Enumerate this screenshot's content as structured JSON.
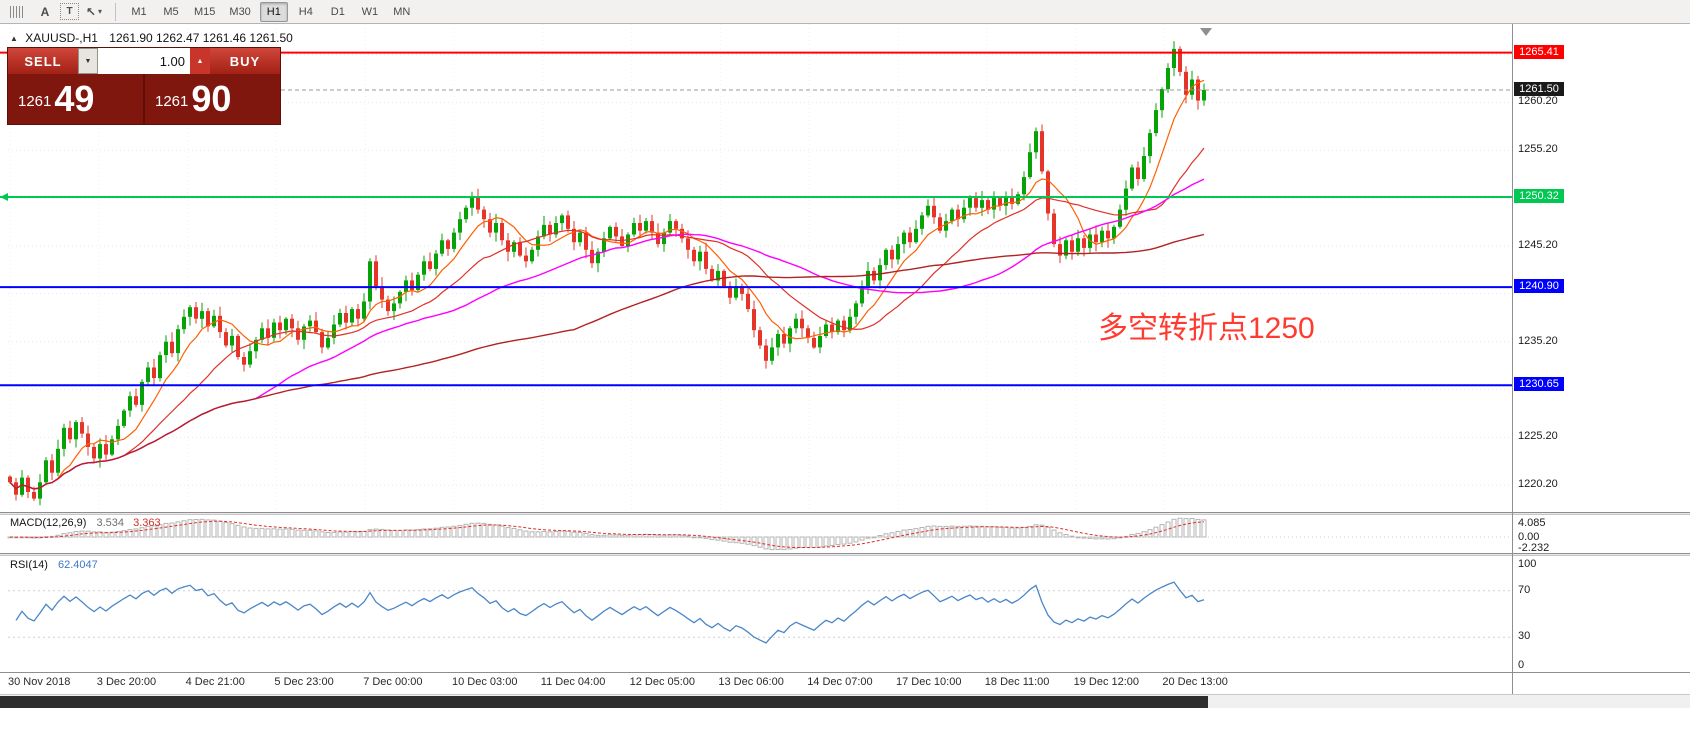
{
  "toolbar": {
    "letter_a": "A",
    "letter_t": "T",
    "timeframes": [
      "M1",
      "M5",
      "M15",
      "M30",
      "H1",
      "H4",
      "D1",
      "W1",
      "MN"
    ],
    "active_timeframe": "H1"
  },
  "header": {
    "symbol": "XAUUSD-,H1",
    "ohlc": "1261.90 1262.47 1261.46 1261.50"
  },
  "one_click": {
    "sell": "SELL",
    "buy": "BUY",
    "volume": "1.00",
    "sell_big": "1261",
    "sell_sup": "49",
    "buy_big": "1261",
    "buy_sup": "90"
  },
  "annotation": {
    "text": "多空转折点1250",
    "color": "#ff3b30"
  },
  "colors": {
    "up": "#07a207",
    "down": "#e53528",
    "ma_fast": "#ff5f00",
    "ma_med": "#e03028",
    "ma_mag": "#ff00ff",
    "ma_slow": "#b22222",
    "sup_line": "#00c853",
    "current": "#1a1a1a",
    "macd_signal": "#e03028",
    "macd_hist": "#b4b4b4",
    "rsi": "#4a86c8"
  },
  "levels": [
    {
      "price": 1265.41,
      "label": "1265.41",
      "color": "#ff0000"
    },
    {
      "price": 1250.32,
      "label": "1250.32",
      "color": "#00c853"
    },
    {
      "price": 1240.9,
      "label": "1240.90",
      "color": "#0000ff"
    },
    {
      "price": 1230.65,
      "label": "1230.65",
      "color": "#0000ff"
    }
  ],
  "current_price": {
    "price": 1261.5,
    "label": "1261.50"
  },
  "macd": {
    "name": "MACD(12,26,9)",
    "value_main": "3.534",
    "value_signal": "3.363",
    "axis": [
      "4.085",
      "0.00",
      "-2.232"
    ]
  },
  "rsi": {
    "name": "RSI(14)",
    "value": "62.4047",
    "axis": [
      "100",
      "70",
      "30",
      "0"
    ],
    "levels": [
      70,
      30
    ]
  },
  "chart_data": {
    "type": "candlestick",
    "symbol": "XAUUSD-",
    "timeframe": "H1",
    "title": "XAUUSD-,H1 1261.90 1262.47 1261.46 1261.50",
    "ohlc_header": {
      "open": 1261.9,
      "high": 1262.47,
      "low": 1261.46,
      "close": 1261.5
    },
    "y_range": [
      1217.4,
      1268.4
    ],
    "y_ticks": [
      "1260.20",
      "1255.20",
      "1245.20",
      "1235.20",
      "1225.20",
      "1220.20"
    ],
    "x_labels": [
      "30 Nov 2018",
      "3 Dec 20:00",
      "4 Dec 21:00",
      "5 Dec 23:00",
      "7 Dec 00:00",
      "10 Dec 03:00",
      "11 Dec 04:00",
      "12 Dec 05:00",
      "13 Dec 06:00",
      "14 Dec 07:00",
      "17 Dec 10:00",
      "18 Dec 11:00",
      "19 Dec 12:00",
      "20 Dec 13:00"
    ],
    "horizontal_levels": [
      1265.41,
      1250.32,
      1240.9,
      1230.65
    ],
    "indicators": {
      "moving_average_windows": [
        8,
        20,
        42,
        95
      ],
      "macd": "12,26,9",
      "rsi_period": 14
    },
    "visible_bars": 200,
    "closes": [
      1220.5,
      1219.2,
      1221.0,
      1219.5,
      1218.8,
      1220.5,
      1222.8,
      1221.5,
      1224.0,
      1226.2,
      1225.0,
      1226.8,
      1225.6,
      1224.2,
      1223.0,
      1224.5,
      1223.4,
      1225.0,
      1226.4,
      1228.0,
      1229.5,
      1228.6,
      1231.0,
      1232.5,
      1231.4,
      1233.8,
      1235.2,
      1234.0,
      1236.5,
      1237.8,
      1238.8,
      1237.6,
      1238.4,
      1236.8,
      1237.9,
      1236.2,
      1234.8,
      1235.8,
      1233.6,
      1232.8,
      1234.2,
      1235.4,
      1236.6,
      1235.6,
      1237.2,
      1236.4,
      1237.6,
      1236.6,
      1235.4,
      1236.8,
      1237.4,
      1236.2,
      1234.6,
      1235.6,
      1237.0,
      1238.2,
      1237.2,
      1238.6,
      1237.6,
      1239.4,
      1243.6,
      1241.0,
      1239.6,
      1238.4,
      1239.2,
      1240.4,
      1241.6,
      1240.6,
      1242.2,
      1243.6,
      1242.8,
      1244.4,
      1245.8,
      1244.9,
      1246.6,
      1248.0,
      1249.2,
      1250.3,
      1249.0,
      1248.0,
      1246.6,
      1247.6,
      1245.8,
      1244.6,
      1245.6,
      1244.2,
      1243.6,
      1244.8,
      1246.2,
      1247.4,
      1246.4,
      1247.6,
      1248.4,
      1247.0,
      1245.6,
      1246.6,
      1244.8,
      1243.4,
      1244.6,
      1246.0,
      1247.2,
      1246.2,
      1245.2,
      1246.4,
      1247.6,
      1246.8,
      1247.8,
      1246.6,
      1245.4,
      1246.6,
      1247.8,
      1247.0,
      1246.0,
      1244.8,
      1243.6,
      1244.6,
      1242.8,
      1241.6,
      1242.6,
      1241.0,
      1239.8,
      1241.0,
      1240.2,
      1238.6,
      1236.4,
      1234.8,
      1233.2,
      1234.6,
      1236.0,
      1235.0,
      1236.6,
      1237.6,
      1236.6,
      1235.6,
      1234.6,
      1235.8,
      1237.0,
      1236.2,
      1237.4,
      1236.4,
      1237.8,
      1239.2,
      1241.0,
      1242.6,
      1241.6,
      1243.2,
      1244.8,
      1243.8,
      1245.4,
      1246.6,
      1245.6,
      1247.0,
      1248.4,
      1249.4,
      1248.2,
      1246.8,
      1247.8,
      1249.0,
      1248.0,
      1249.2,
      1250.2,
      1249.2,
      1250.0,
      1249.0,
      1250.2,
      1249.4,
      1250.4,
      1249.6,
      1250.6,
      1252.4,
      1255.0,
      1257.2,
      1253.0,
      1248.6,
      1245.4,
      1244.2,
      1245.8,
      1244.6,
      1246.0,
      1245.0,
      1246.4,
      1245.6,
      1246.8,
      1246.0,
      1247.2,
      1249.0,
      1251.2,
      1253.4,
      1252.2,
      1254.6,
      1257.0,
      1259.4,
      1261.6,
      1263.8,
      1265.8,
      1263.4,
      1261.0,
      1262.6,
      1260.4,
      1261.5
    ]
  }
}
